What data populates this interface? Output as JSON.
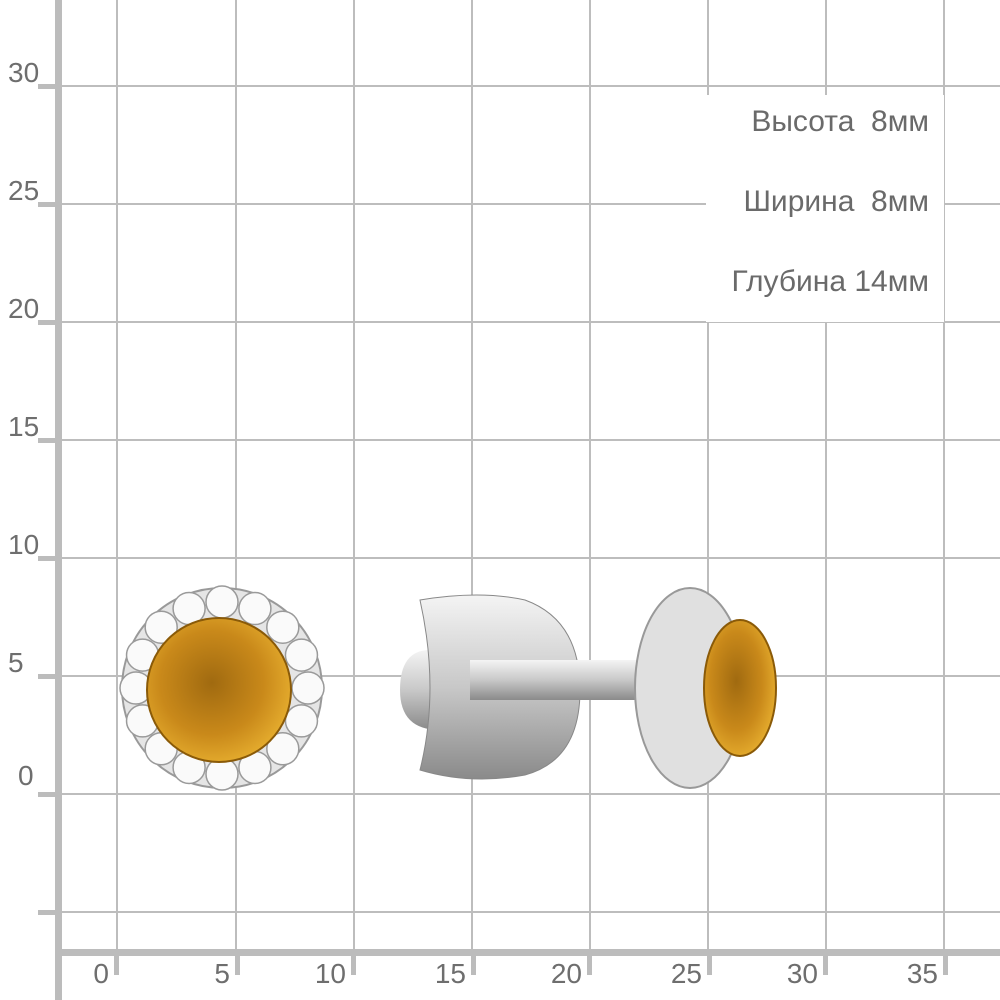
{
  "dimensions": {
    "height": "Высота  8мм",
    "width": "Ширина  8мм",
    "depth": "Глубина 14мм"
  },
  "y_axis_labels": [
    "30",
    "25",
    "20",
    "15",
    "10",
    "5",
    "0"
  ],
  "x_axis_labels": [
    "0",
    "5",
    "10",
    "15",
    "20",
    "25",
    "30",
    "35"
  ],
  "colors": {
    "grid": "#bdbdbd",
    "label": "#6e6e6e",
    "gem": "#c8860f",
    "metal": "#d9d9d9"
  }
}
